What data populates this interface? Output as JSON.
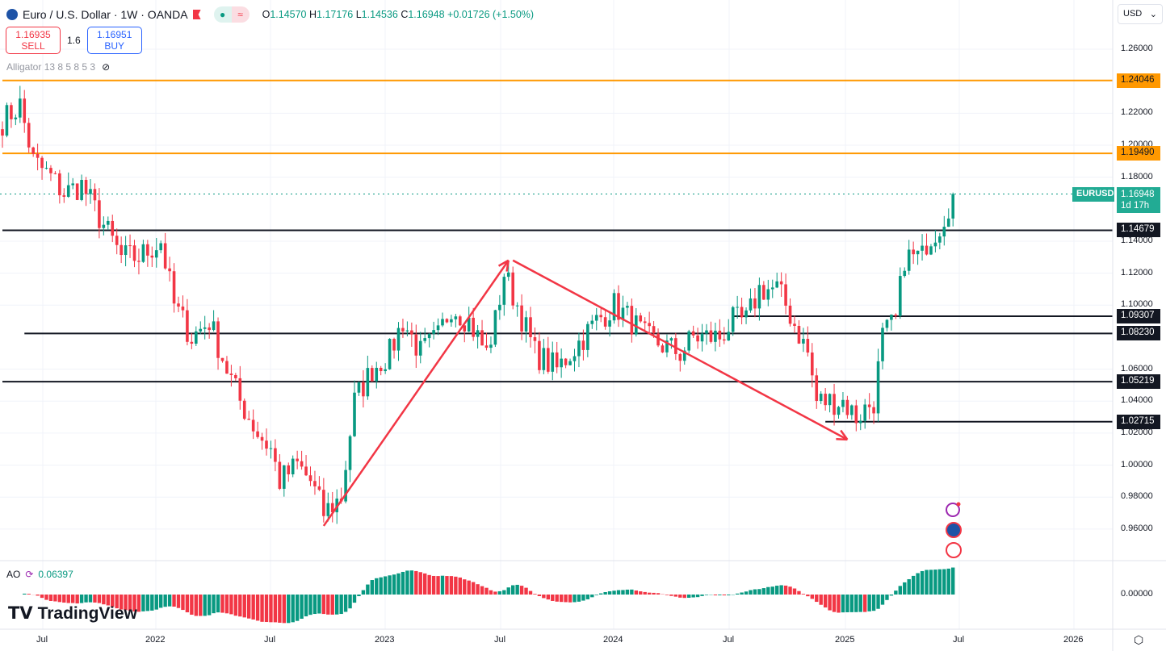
{
  "header": {
    "symbol": "Euro / U.S. Dollar · 1W · OANDA",
    "open_label": "O",
    "open": "1.14570",
    "high_label": "H",
    "high": "1.17176",
    "low_label": "L",
    "low": "1.14536",
    "close_label": "C",
    "close": "1.16948",
    "change": "+0.01726 (+1.50%)"
  },
  "trade": {
    "sell_price": "1.16935",
    "sell_label": "SELL",
    "spread": "1.6",
    "buy_price": "1.16951",
    "buy_label": "BUY"
  },
  "indicator": {
    "alligator": "Alligator 13 8 5 8 5 3"
  },
  "currency": "USD",
  "ao": {
    "label": "AO",
    "value": "0.06397"
  },
  "logo": "TradingView",
  "colors": {
    "up": "#089981",
    "down": "#f23645",
    "orange": "#ff9800",
    "arrow": "#f23645"
  },
  "chart_data": {
    "type": "candlestick",
    "title": "Euro / U.S. Dollar · 1W · OANDA",
    "ylim": [
      0.94,
      1.27
    ],
    "y_ticks": [
      "1.26000",
      "1.22000",
      "1.20000",
      "1.18000",
      "1.14000",
      "1.12000",
      "1.10000",
      "1.06000",
      "1.04000",
      "1.02000",
      "1.00000",
      "0.98000",
      "0.96000"
    ],
    "x_ticks": [
      "Jul",
      "2022",
      "Jul",
      "2023",
      "Jul",
      "2024",
      "Jul",
      "2025",
      "Jul",
      "2026"
    ],
    "last_price": {
      "symbol": "EURUSD",
      "value": "1.16948",
      "countdown": "1d 17h"
    },
    "horizontal_levels": [
      {
        "value": "1.24046",
        "color": "#ff9800",
        "from_week": 0
      },
      {
        "value": "1.19490",
        "color": "#ff9800",
        "from_week": 0
      },
      {
        "value": "1.14679",
        "color": "#131722",
        "from_week": 0
      },
      {
        "value": "1.09307",
        "color": "#131722",
        "from_week": 166
      },
      {
        "value": "1.08230",
        "color": "#131722",
        "from_week": 5
      },
      {
        "value": "1.05219",
        "color": "#131722",
        "from_week": 0
      },
      {
        "value": "1.02715",
        "color": "#131722",
        "from_week": 187
      }
    ],
    "arrows": [
      {
        "from": [
          73,
          0.962
        ],
        "to": [
          115,
          1.128
        ]
      },
      {
        "from": [
          116,
          1.128
        ],
        "to": [
          192,
          1.016
        ]
      }
    ],
    "price_anchors": [
      [
        0,
        1.215
      ],
      [
        4,
        1.225
      ],
      [
        7,
        1.19
      ],
      [
        11,
        1.18
      ],
      [
        14,
        1.17
      ],
      [
        18,
        1.175
      ],
      [
        21,
        1.16
      ],
      [
        27,
        1.13
      ],
      [
        31,
        1.13
      ],
      [
        36,
        1.14
      ],
      [
        39,
        1.1
      ],
      [
        43,
        1.08
      ],
      [
        47,
        1.09
      ],
      [
        51,
        1.06
      ],
      [
        54,
        1.04
      ],
      [
        58,
        1.02
      ],
      [
        61,
        1.01
      ],
      [
        63,
        0.99
      ],
      [
        67,
        1.0
      ],
      [
        70,
        0.99
      ],
      [
        73,
        0.97
      ],
      [
        77,
        0.98
      ],
      [
        80,
        1.04
      ],
      [
        84,
        1.06
      ],
      [
        88,
        1.07
      ],
      [
        91,
        1.09
      ],
      [
        95,
        1.07
      ],
      [
        99,
        1.08
      ],
      [
        102,
        1.1
      ],
      [
        106,
        1.09
      ],
      [
        110,
        1.07
      ],
      [
        112,
        1.09
      ],
      [
        114,
        1.12
      ],
      [
        117,
        1.1
      ],
      [
        121,
        1.07
      ],
      [
        126,
        1.06
      ],
      [
        132,
        1.08
      ],
      [
        135,
        1.09
      ],
      [
        139,
        1.1
      ],
      [
        143,
        1.09
      ],
      [
        146,
        1.08
      ],
      [
        154,
        1.07
      ],
      [
        157,
        1.08
      ],
      [
        163,
        1.08
      ],
      [
        166,
        1.09
      ],
      [
        169,
        1.09
      ],
      [
        172,
        1.11
      ],
      [
        176,
        1.11
      ],
      [
        178,
        1.1
      ],
      [
        183,
        1.07
      ],
      [
        185,
        1.04
      ],
      [
        188,
        1.04
      ],
      [
        191,
        1.04
      ],
      [
        194,
        1.03
      ],
      [
        198,
        1.04
      ],
      [
        200,
        1.08
      ],
      [
        203,
        1.09
      ],
      [
        205,
        1.13
      ],
      [
        209,
        1.13
      ],
      [
        210,
        1.14
      ],
      [
        213,
        1.15
      ],
      [
        216,
        1.16948
      ]
    ],
    "ao_last": 0.06397
  }
}
